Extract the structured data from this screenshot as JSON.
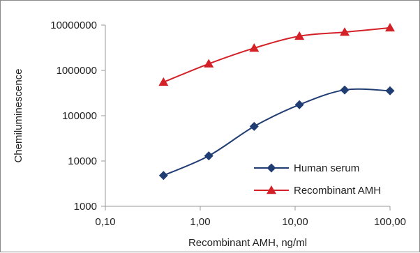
{
  "chart_data": {
    "type": "line",
    "title": "",
    "xlabel": "Recombinant AMH, ng/ml",
    "ylabel": "Chemiluminescence",
    "x_scale": "log",
    "y_scale": "log",
    "xlim": [
      0.1,
      100
    ],
    "ylim": [
      1000,
      10000000
    ],
    "x_ticks": [
      {
        "value": 0.1,
        "label": "0,10"
      },
      {
        "value": 1,
        "label": "1,00"
      },
      {
        "value": 10,
        "label": "10,00"
      },
      {
        "value": 100,
        "label": "100,00"
      }
    ],
    "y_ticks": [
      {
        "value": 1000,
        "label": "1000"
      },
      {
        "value": 10000,
        "label": "10000"
      },
      {
        "value": 100000,
        "label": "100000"
      },
      {
        "value": 1000000,
        "label": "1000000"
      },
      {
        "value": 10000000,
        "label": "10000000"
      }
    ],
    "grid": false,
    "legend_position": "bottom-right",
    "series": [
      {
        "name": "Human serum",
        "color": "#1f3c73",
        "marker": "diamond",
        "x": [
          0.41,
          1.23,
          3.7,
          11.1,
          33.3,
          100
        ],
        "y": [
          4800,
          13000,
          58000,
          175000,
          370000,
          355000
        ]
      },
      {
        "name": "Recombinant AMH",
        "color": "#d42027",
        "marker": "triangle",
        "x": [
          0.41,
          1.23,
          3.7,
          11.1,
          33.3,
          100
        ],
        "y": [
          550000,
          1400000,
          3100000,
          5700000,
          7000000,
          8700000
        ]
      }
    ]
  }
}
